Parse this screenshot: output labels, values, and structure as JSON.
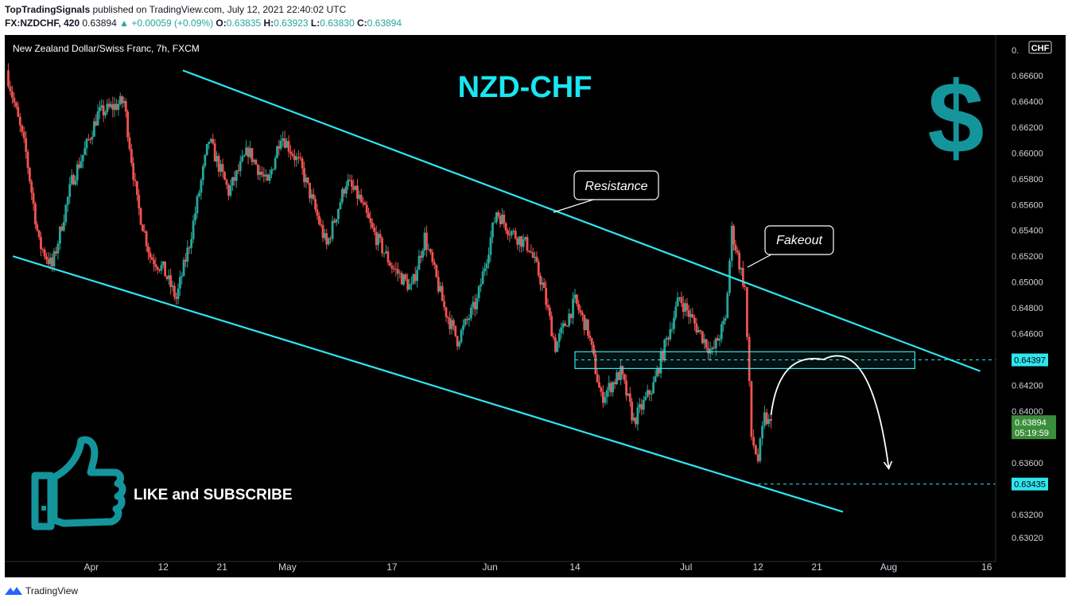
{
  "header": {
    "publisher": "TopTradingSignals",
    "published_text": "published on TradingView.com, July 12, 2021 22:40:02 UTC",
    "symbol": "FX:NZDCHF, 420",
    "last": "0.63894",
    "change": "+0.00059 (+0.09%)",
    "o_label": "O:",
    "o_value": "0.63835",
    "h_label": "H:",
    "h_value": "0.63923",
    "l_label": "L:",
    "l_value": "0.63830",
    "c_label": "C:",
    "c_value": "0.63894"
  },
  "footer": {
    "brand": "TradingView"
  },
  "chart_data": {
    "type": "candlestick",
    "title": "NZD-CHF",
    "instrument_label": "New Zealand Dollar/Swiss Franc, 7h, FXCM",
    "currency": "CHF",
    "y_ticks": [
      "0.66600",
      "0.66400",
      "0.66200",
      "0.66000",
      "0.65800",
      "0.65600",
      "0.65400",
      "0.65200",
      "0.65000",
      "0.64800",
      "0.64600",
      "0.64400",
      "0.64200",
      "0.64000",
      "0.63600",
      "0.63200",
      "0.63020"
    ],
    "y_ticks_partial": [
      "0.",
      "0.63"
    ],
    "x_ticks": [
      "Apr",
      "12",
      "21",
      "May",
      "17",
      "Jun",
      "14",
      "Jul",
      "12",
      "21",
      "Aug",
      "16"
    ],
    "price_badges": [
      {
        "label": "0.64397",
        "kind": "level"
      },
      {
        "label": "0.63894",
        "kind": "last"
      },
      {
        "label": "05:19:59",
        "kind": "countdown"
      },
      {
        "label": "0.63435",
        "kind": "level"
      }
    ],
    "annotations": {
      "resistance": "Resistance",
      "fakeout": "Fakeout",
      "cta": "LIKE and SUBSCRIBE",
      "dollar": "$"
    },
    "colors": {
      "background": "#000000",
      "up": "#26a69a",
      "down": "#ef5350",
      "channel": "#2ee6f0",
      "title": "#19e6f0",
      "last_price": "#3a8d3a"
    },
    "price_path": [
      [
        "2021-03-19",
        0.6664
      ],
      [
        "2021-03-22",
        0.66
      ],
      [
        "2021-03-24",
        0.653
      ],
      [
        "2021-03-26",
        0.6512
      ],
      [
        "2021-03-29",
        0.6578
      ],
      [
        "2021-03-31",
        0.6602
      ],
      [
        "2021-04-02",
        0.663
      ],
      [
        "2021-04-06",
        0.664
      ],
      [
        "2021-04-08",
        0.6562
      ],
      [
        "2021-04-10",
        0.652
      ],
      [
        "2021-04-12",
        0.651
      ],
      [
        "2021-04-14",
        0.6487
      ],
      [
        "2021-04-16",
        0.653
      ],
      [
        "2021-04-19",
        0.661
      ],
      [
        "2021-04-22",
        0.657
      ],
      [
        "2021-04-25",
        0.6602
      ],
      [
        "2021-04-28",
        0.6575
      ],
      [
        "2021-04-30",
        0.6615
      ],
      [
        "2021-05-03",
        0.659
      ],
      [
        "2021-05-05",
        0.656
      ],
      [
        "2021-05-07",
        0.6528
      ],
      [
        "2021-05-10",
        0.6578
      ],
      [
        "2021-05-12",
        0.6565
      ],
      [
        "2021-05-14",
        0.654
      ],
      [
        "2021-05-17",
        0.6512
      ],
      [
        "2021-05-20",
        0.6495
      ],
      [
        "2021-05-22",
        0.6535
      ],
      [
        "2021-05-25",
        0.648
      ],
      [
        "2021-05-27",
        0.6455
      ],
      [
        "2021-05-30",
        0.6485
      ],
      [
        "2021-06-02",
        0.6555
      ],
      [
        "2021-06-04",
        0.654
      ],
      [
        "2021-06-07",
        0.6527
      ],
      [
        "2021-06-09",
        0.6498
      ],
      [
        "2021-06-11",
        0.645
      ],
      [
        "2021-06-14",
        0.6485
      ],
      [
        "2021-06-16",
        0.6462
      ],
      [
        "2021-06-18",
        0.641
      ],
      [
        "2021-06-21",
        0.643
      ],
      [
        "2021-06-23",
        0.6392
      ],
      [
        "2021-06-26",
        0.642
      ],
      [
        "2021-06-28",
        0.6455
      ],
      [
        "2021-06-30",
        0.6488
      ],
      [
        "2021-07-02",
        0.647
      ],
      [
        "2021-07-05",
        0.6445
      ],
      [
        "2021-07-07",
        0.647
      ],
      [
        "2021-07-08",
        0.654
      ],
      [
        "2021-07-10",
        0.6495
      ],
      [
        "2021-07-11",
        0.638
      ],
      [
        "2021-07-12",
        0.6362
      ],
      [
        "2021-07-13",
        0.6395
      ],
      [
        "2021-07-14",
        0.6389
      ]
    ],
    "channel_upper": [
      [
        "2021-04-15",
        0.6664
      ],
      [
        "2021-08-15",
        0.6431
      ]
    ],
    "channel_lower": [
      [
        "2021-03-20",
        0.652
      ],
      [
        "2021-07-25",
        0.6322
      ]
    ],
    "zone": {
      "start": "2021-06-14",
      "end": "2021-08-05",
      "top": 0.6446,
      "bottom": 0.6433
    },
    "projection": [
      [
        "2021-07-14",
        0.6397
      ],
      [
        "2021-07-22",
        0.644
      ],
      [
        "2021-08-01",
        0.6356
      ]
    ],
    "levels": [
      0.64397,
      0.63435
    ]
  }
}
